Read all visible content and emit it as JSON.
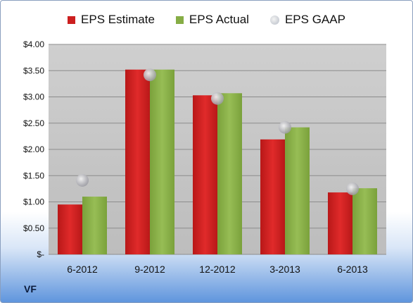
{
  "chart_data": {
    "type": "bar",
    "categories": [
      "6-2012",
      "9-2012",
      "12-2012",
      "3-2013",
      "6-2013"
    ],
    "series": [
      {
        "name": "EPS Estimate",
        "values": [
          0.95,
          3.52,
          3.03,
          2.19,
          1.18
        ],
        "color": "#cc1f1f"
      },
      {
        "name": "EPS Actual",
        "values": [
          1.1,
          3.52,
          3.07,
          2.42,
          1.26
        ],
        "color": "#86ad45"
      }
    ],
    "markers": {
      "name": "EPS GAAP",
      "values": [
        1.41,
        3.42,
        2.97,
        2.42,
        1.25
      ]
    },
    "y_tick_labels": [
      "$-",
      "$0.50",
      "$1.00",
      "$1.50",
      "$2.00",
      "$2.50",
      "$3.00",
      "$3.50",
      "$4.00"
    ],
    "ylim": [
      0,
      4
    ],
    "grid": true,
    "legend_position": "top"
  },
  "company": "VF",
  "colors": {
    "plot_background": "#c8c8c8",
    "gridline": "#8c8c8c"
  }
}
